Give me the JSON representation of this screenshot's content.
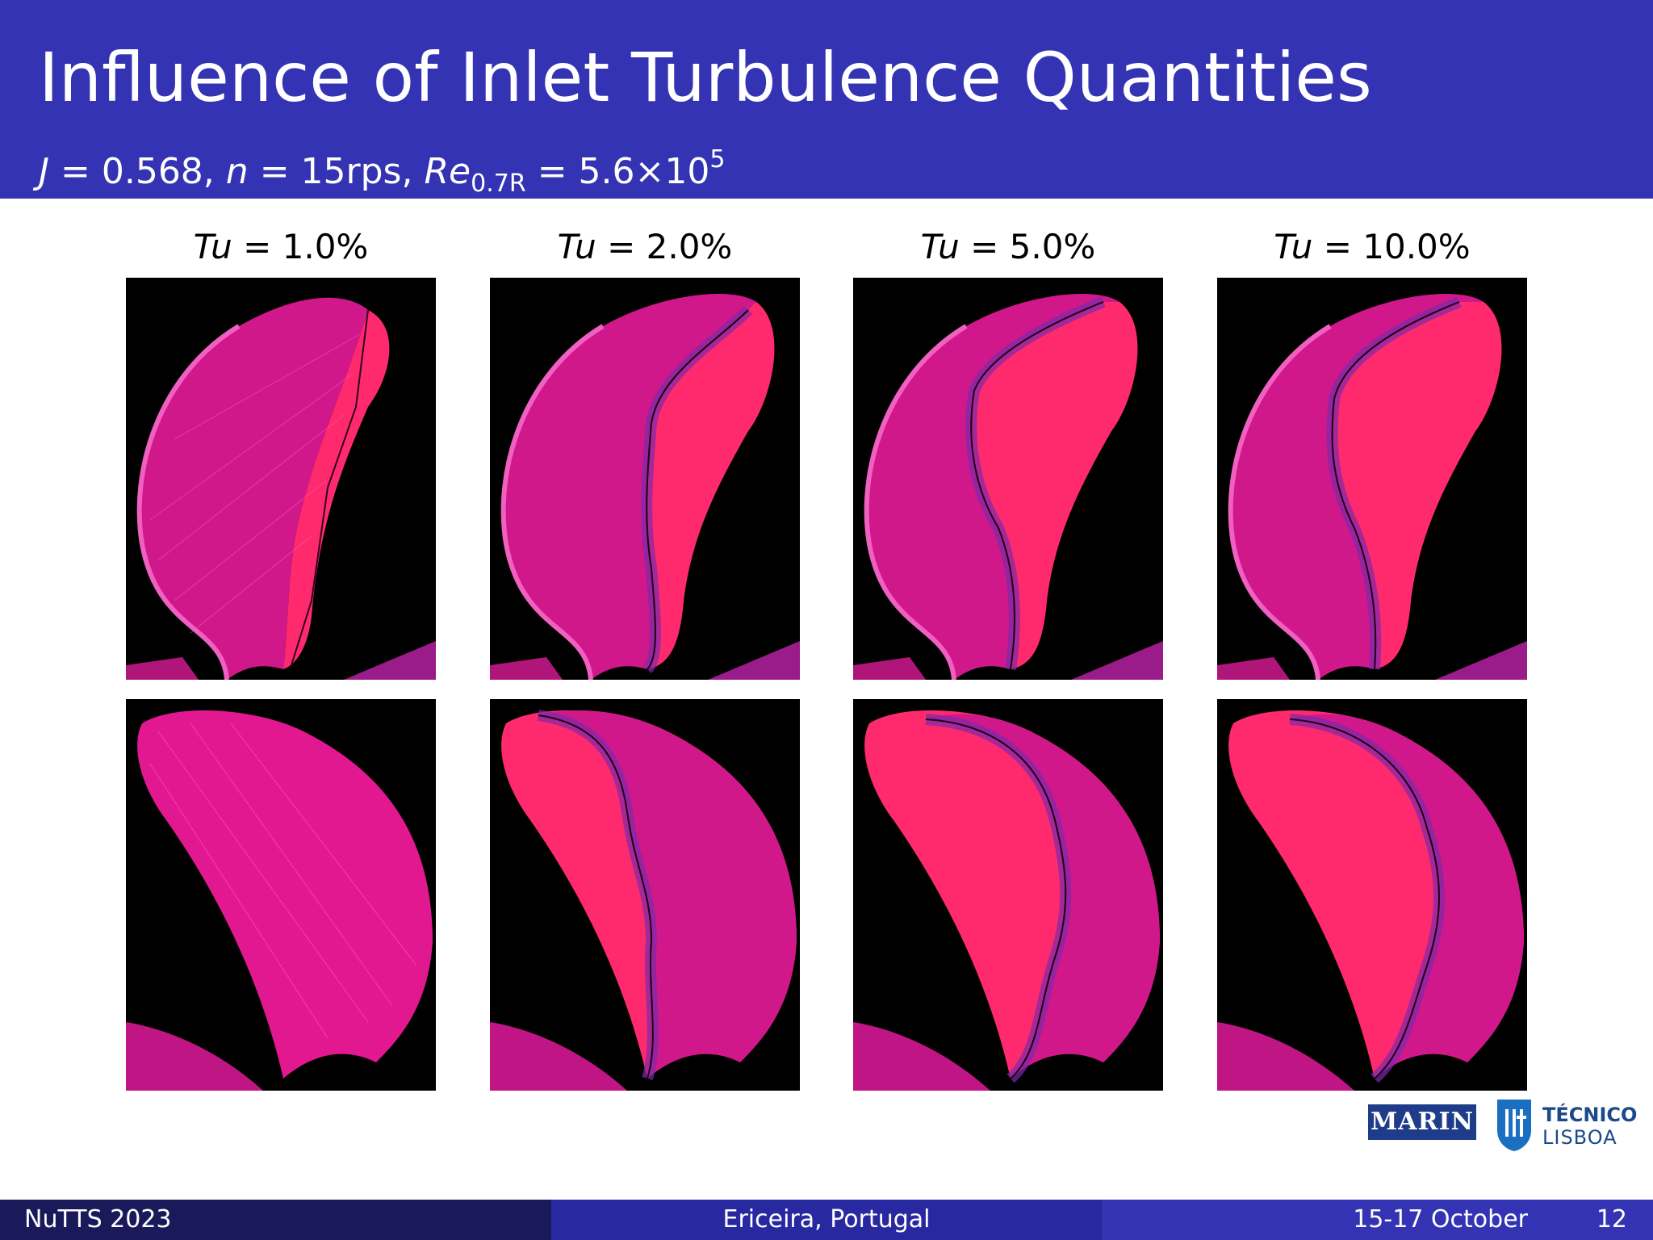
{
  "header": {
    "title": "Influence of Inlet Turbulence Quantities",
    "subtitle": {
      "j_symbol": "J",
      "j_value": "= 0.568,",
      "n_symbol": "n",
      "n_value": "= 15rps,",
      "re_symbol": "Re",
      "re_subscript": "0.7R",
      "re_value": "= 5.6×10",
      "re_exponent": "5"
    }
  },
  "columns": [
    {
      "symbol": "Tu",
      "value": "= 1.0%"
    },
    {
      "symbol": "Tu",
      "value": "= 2.0%"
    },
    {
      "symbol": "Tu",
      "value": "= 5.0%"
    },
    {
      "symbol": "Tu",
      "value": "= 10.0%"
    }
  ],
  "colors": {
    "header_bg": "#3333b3",
    "panel_bg": "#000000",
    "blade_magenta": "#d0188a",
    "blade_pink": "#ff2a6e",
    "transition_purple": "#7a2aa8"
  },
  "logos": {
    "marin": "MARIN",
    "tecnico": "TÉCNICO",
    "lisboa": "LISBOA"
  },
  "footer": {
    "left": "NuTTS 2023",
    "center": "Ericeira, Portugal",
    "date": "15-17 October",
    "page": "12"
  }
}
